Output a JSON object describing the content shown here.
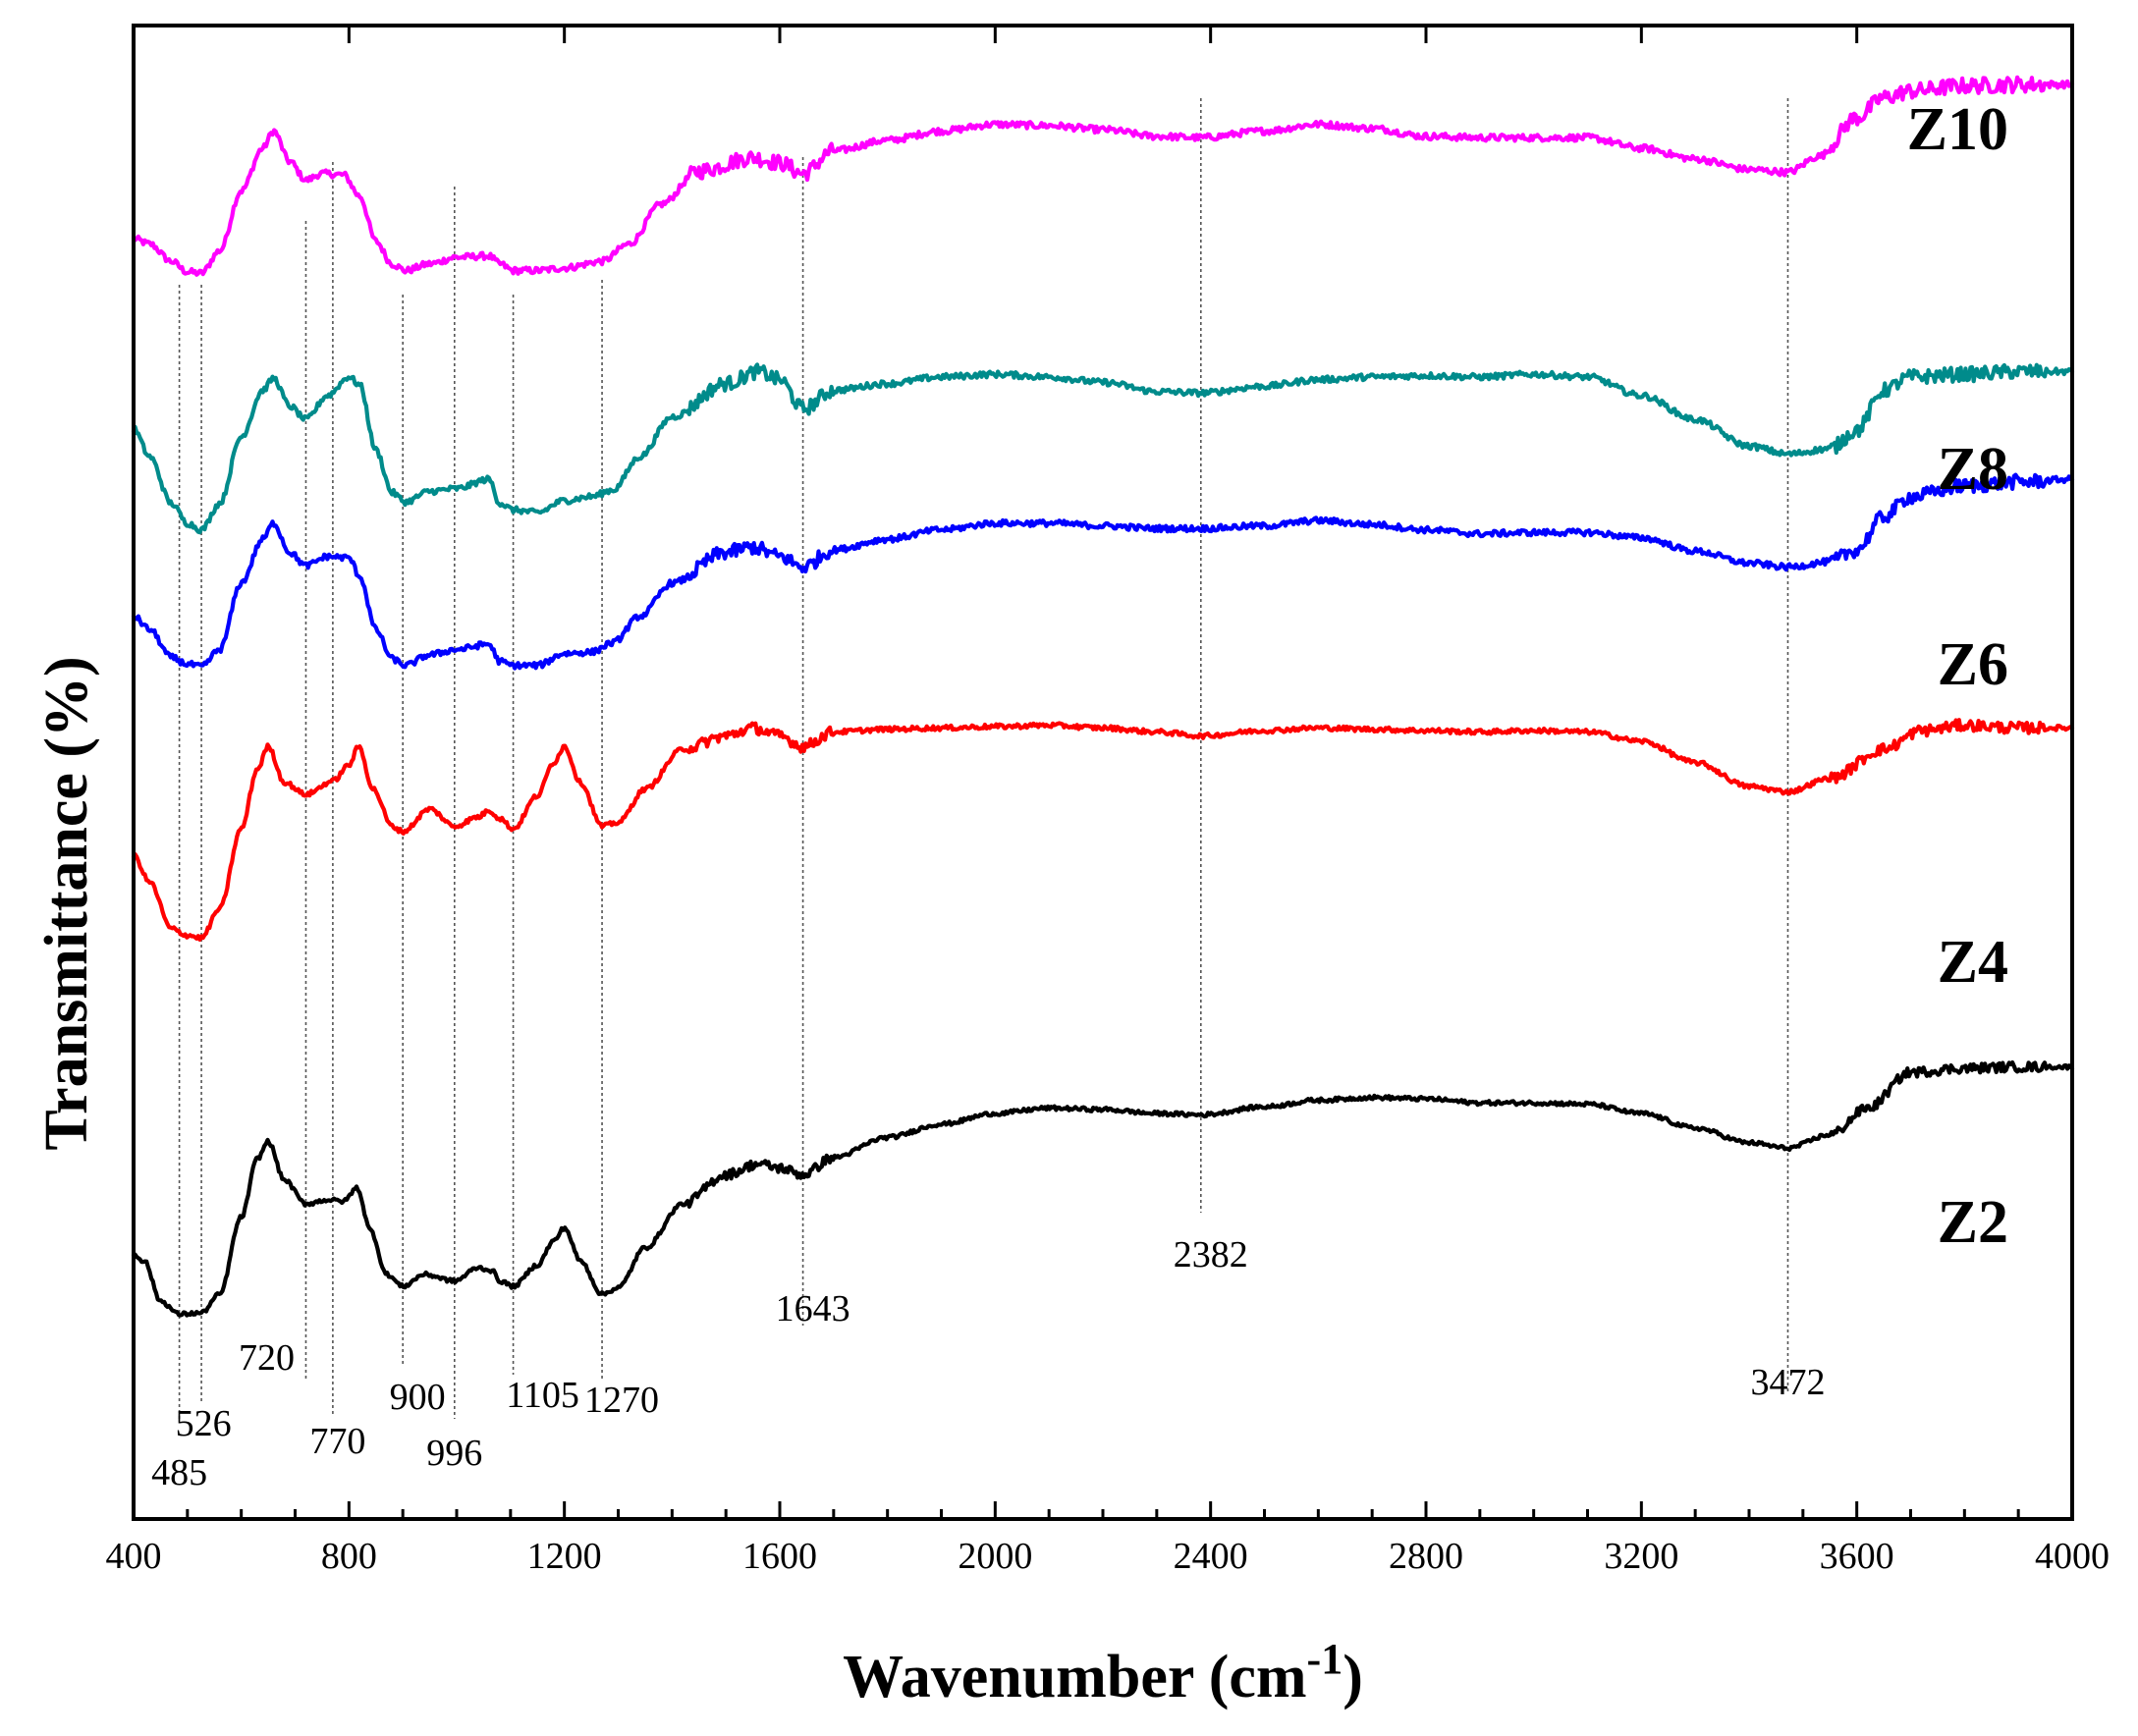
{
  "chart_data": {
    "type": "line",
    "title": "",
    "xlabel": "Wavenumber (cm",
    "xlabel_superscript": "-1",
    "xlabel_close": ")",
    "ylabel": "Transmittance (%)",
    "xlim": [
      400,
      4000
    ],
    "ylim": [
      0,
      100
    ],
    "xticks": [
      400,
      800,
      1200,
      1600,
      2000,
      2400,
      2800,
      3200,
      3600,
      4000
    ],
    "yticks_shown": false,
    "grid": false,
    "series": [
      {
        "name": "Z10",
        "color": "#ff00ff",
        "noise": 0.5,
        "x": [
          400,
          430,
          470,
          500,
          526,
          560,
          600,
          640,
          660,
          690,
          720,
          750,
          790,
          820,
          850,
          880,
          905,
          950,
          1000,
          1060,
          1080,
          1105,
          1150,
          1200,
          1270,
          1320,
          1380,
          1450,
          1550,
          1600,
          1643,
          1700,
          1800,
          1900,
          2000,
          2100,
          2200,
          2300,
          2382,
          2500,
          2600,
          2700,
          2800,
          2900,
          3000,
          3100,
          3200,
          3300,
          3400,
          3472,
          3530,
          3600,
          3650,
          3700,
          3800,
          3900,
          4000
        ],
        "y": [
          88.4,
          88.0,
          86.7,
          85.9,
          85.8,
          87.5,
          92.0,
          95.2,
          96.5,
          94.2,
          92.8,
          93.3,
          93.2,
          91.6,
          88.2,
          86.5,
          86.0,
          86.5,
          87.0,
          87.1,
          86.5,
          86.0,
          86.0,
          86.2,
          86.7,
          88.0,
          91.0,
          93.5,
          94.5,
          94.1,
          93.3,
          95.0,
          95.8,
          96.5,
          97.0,
          96.9,
          96.6,
          96.1,
          96.0,
          96.5,
          97.0,
          96.7,
          96.1,
          96.0,
          96.0,
          96.0,
          95.2,
          94.4,
          93.6,
          93.4,
          94.6,
          97.5,
          99.0,
          99.5,
          99.9,
          100.0,
          100.0
        ]
      },
      {
        "name": "Z8",
        "color": "#008b8b",
        "noise": 0.45,
        "x": [
          400,
          430,
          470,
          500,
          526,
          560,
          600,
          640,
          660,
          690,
          720,
          760,
          800,
          820,
          850,
          880,
          905,
          950,
          1000,
          1060,
          1080,
          1105,
          1150,
          1200,
          1250,
          1290,
          1340,
          1400,
          1500,
          1560,
          1600,
          1643,
          1700,
          1800,
          1900,
          2000,
          2100,
          2200,
          2300,
          2382,
          2500,
          2600,
          2700,
          2800,
          2900,
          3000,
          3100,
          3200,
          3300,
          3400,
          3472,
          3550,
          3600,
          3650,
          3700,
          3800,
          3900,
          4000
        ],
        "y": [
          74.1,
          72.0,
          68.5,
          67.0,
          66.5,
          68.5,
          73.5,
          77.0,
          77.9,
          75.8,
          74.8,
          76.6,
          78.0,
          77.4,
          72.5,
          69.3,
          68.6,
          69.4,
          69.6,
          70.3,
          68.5,
          68.0,
          67.8,
          68.7,
          69.0,
          69.5,
          72.0,
          75.0,
          77.5,
          78.4,
          77.8,
          75.6,
          77.0,
          77.5,
          78.0,
          78.2,
          78.0,
          77.6,
          76.9,
          76.8,
          77.3,
          77.8,
          78.0,
          78.1,
          78.0,
          78.2,
          78.0,
          76.6,
          74.8,
          72.8,
          72.2,
          72.6,
          74.0,
          77.0,
          78.0,
          78.2,
          78.4,
          78.4
        ]
      },
      {
        "name": "Z6",
        "color": "#0000ff",
        "noise": 0.45,
        "x": [
          400,
          430,
          470,
          500,
          526,
          560,
          600,
          640,
          660,
          690,
          720,
          760,
          800,
          820,
          850,
          880,
          905,
          950,
          1000,
          1060,
          1080,
          1105,
          1150,
          1200,
          1250,
          1290,
          1340,
          1400,
          1500,
          1550,
          1600,
          1643,
          1700,
          1800,
          1900,
          2000,
          2100,
          2200,
          2300,
          2382,
          2500,
          2600,
          2700,
          2800,
          2900,
          3000,
          3100,
          3200,
          3300,
          3400,
          3472,
          3550,
          3600,
          3650,
          3700,
          3800,
          3900,
          4000
        ],
        "y": [
          60.0,
          59.0,
          56.9,
          56.4,
          56.2,
          57.5,
          62.5,
          65.8,
          67.0,
          64.8,
          63.8,
          64.5,
          64.4,
          63.0,
          59.0,
          56.8,
          56.3,
          57.1,
          57.5,
          57.9,
          56.6,
          56.3,
          56.3,
          57.2,
          57.3,
          58.0,
          60.0,
          62.5,
          64.8,
          65.2,
          64.5,
          63.7,
          65.0,
          65.8,
          66.5,
          67.0,
          67.0,
          66.8,
          66.6,
          66.6,
          66.8,
          67.2,
          66.9,
          66.5,
          66.2,
          66.3,
          66.3,
          65.9,
          64.9,
          64.0,
          63.7,
          64.1,
          65.0,
          67.5,
          69.0,
          69.8,
          70.1,
          70.3
        ]
      },
      {
        "name": "Z4",
        "color": "#ff0000",
        "noise": 0.35,
        "x": [
          400,
          430,
          470,
          500,
          526,
          560,
          600,
          630,
          650,
          680,
          720,
          770,
          800,
          818,
          845,
          880,
          900,
          950,
          996,
          1040,
          1060,
          1080,
          1105,
          1150,
          1180,
          1200,
          1230,
          1270,
          1300,
          1350,
          1420,
          1500,
          1550,
          1600,
          1643,
          1700,
          1800,
          1900,
          2000,
          2100,
          2200,
          2300,
          2382,
          2500,
          2600,
          2700,
          2800,
          2900,
          3000,
          3100,
          3200,
          3300,
          3400,
          3472,
          3550,
          3650,
          3720,
          3800,
          3900,
          4000
        ],
        "y": [
          42.0,
          40.0,
          36.5,
          36.0,
          35.8,
          38.0,
          44.0,
          48.5,
          50.2,
          47.5,
          46.6,
          47.6,
          48.8,
          50.2,
          47.0,
          44.2,
          43.8,
          45.5,
          44.2,
          44.9,
          45.4,
          44.8,
          44.0,
          46.5,
          49.0,
          50.2,
          47.5,
          44.2,
          44.5,
          47.0,
          50.0,
          51.0,
          51.6,
          51.0,
          50.2,
          51.3,
          51.5,
          51.6,
          51.7,
          51.8,
          51.6,
          51.3,
          51.0,
          51.4,
          51.6,
          51.5,
          51.4,
          51.3,
          51.4,
          51.3,
          50.6,
          49.0,
          47.2,
          46.8,
          47.8,
          50.0,
          51.4,
          51.8,
          51.6,
          51.6
        ]
      },
      {
        "name": "Z2",
        "color": "#000000",
        "noise": 0.3,
        "x": [
          400,
          420,
          450,
          485,
          526,
          560,
          600,
          630,
          650,
          680,
          720,
          760,
          790,
          815,
          840,
          870,
          900,
          940,
          996,
          1040,
          1065,
          1080,
          1105,
          1150,
          1180,
          1200,
          1230,
          1270,
          1300,
          1350,
          1420,
          1500,
          1560,
          1600,
          1643,
          1700,
          1800,
          1900,
          2000,
          2100,
          2200,
          2300,
          2382,
          2500,
          2600,
          2700,
          2800,
          2900,
          3000,
          3100,
          3200,
          3300,
          3400,
          3472,
          3550,
          3620,
          3700,
          3800,
          3900,
          4000
        ],
        "y": [
          12.0,
          11.5,
          8.5,
          7.5,
          7.6,
          9.0,
          14.8,
          19.2,
          20.5,
          17.6,
          15.8,
          16.1,
          16.0,
          17.0,
          13.8,
          10.5,
          9.6,
          10.5,
          10.0,
          11.0,
          10.8,
          10.0,
          9.6,
          11.2,
          13.0,
          14.0,
          11.5,
          9.0,
          9.5,
          12.5,
          15.8,
          18.0,
          18.8,
          18.5,
          18.0,
          19.3,
          20.8,
          21.8,
          22.6,
          23.0,
          22.9,
          22.6,
          22.5,
          23.1,
          23.6,
          23.8,
          23.7,
          23.4,
          23.4,
          23.3,
          22.6,
          21.5,
          20.4,
          20.0,
          21.0,
          23.0,
          25.7,
          26.0,
          26.1,
          26.1
        ]
      }
    ],
    "annotations": [
      {
        "x": 485,
        "label": "485"
      },
      {
        "x": 526,
        "label": "526"
      },
      {
        "x": 720,
        "label": "720"
      },
      {
        "x": 770,
        "label": "770"
      },
      {
        "x": 900,
        "label": "900"
      },
      {
        "x": 996,
        "label": "996"
      },
      {
        "x": 1105,
        "label": "1105"
      },
      {
        "x": 1270,
        "label": "1270"
      },
      {
        "x": 1643,
        "label": "1643"
      },
      {
        "x": 2382,
        "label": "2382"
      },
      {
        "x": 3472,
        "label": "3472"
      }
    ]
  }
}
